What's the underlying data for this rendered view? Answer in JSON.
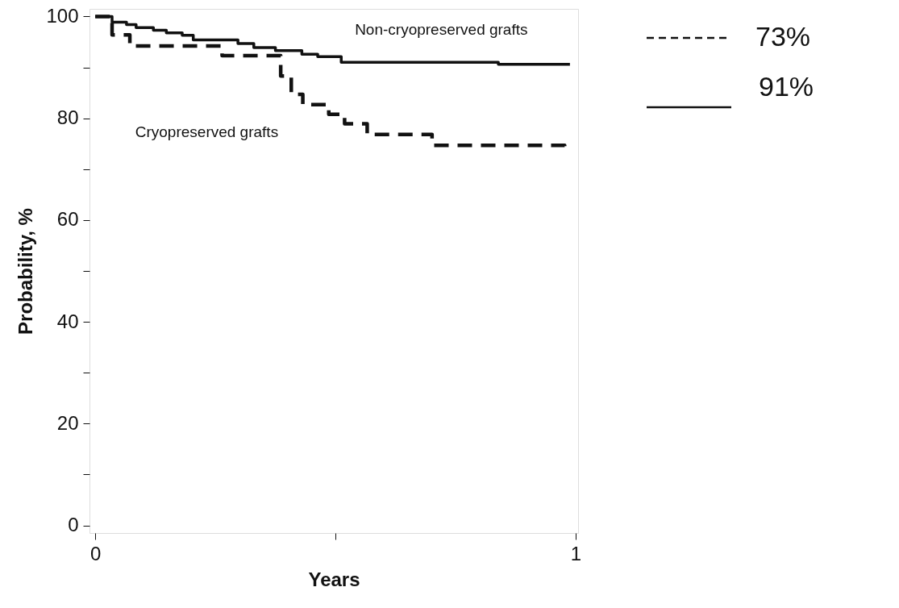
{
  "chart_data": {
    "type": "step",
    "xlabel": "Years",
    "ylabel": "Probability, %",
    "xlim": [
      -0.012,
      1.005
    ],
    "ylim": [
      -1.5,
      101.5
    ],
    "xticks": [
      0,
      {
        "value": 0.5,
        "label": null
      },
      1
    ],
    "yticks": [
      0,
      {
        "value": 10,
        "label": null
      },
      20,
      {
        "value": 30,
        "label": null
      },
      40,
      {
        "value": 50,
        "label": null
      },
      60,
      {
        "value": 70,
        "label": null
      },
      80,
      {
        "value": 90,
        "label": null
      },
      100
    ],
    "grid": false,
    "series": [
      {
        "name": "Non-cryopreserved grafts",
        "color": "#111111",
        "line_style": "solid",
        "x": [
          0,
          0.035,
          0.065,
          0.085,
          0.121,
          0.148,
          0.181,
          0.204,
          0.297,
          0.33,
          0.375,
          0.43,
          0.463,
          0.512,
          0.839,
          0.988
        ],
        "values": [
          100,
          98.9,
          98.4,
          97.8,
          97.3,
          96.8,
          96.3,
          95.4,
          94.7,
          93.9,
          93.3,
          92.6,
          92.1,
          91.0,
          90.6,
          90.6
        ]
      },
      {
        "name": "Cryopreserved grafts",
        "color": "#111111",
        "line_style": "dashed",
        "x": [
          0,
          0.035,
          0.072,
          0.264,
          0.386,
          0.408,
          0.432,
          0.486,
          0.519,
          0.566,
          0.701,
          0.977,
          0.985
        ],
        "values": [
          100,
          96.4,
          94.2,
          92.3,
          88.3,
          84.7,
          82.7,
          80.8,
          78.9,
          76.8,
          74.7,
          73.7,
          73.7
        ]
      }
    ],
    "annotations": [
      "91%",
      "73%"
    ]
  }
}
